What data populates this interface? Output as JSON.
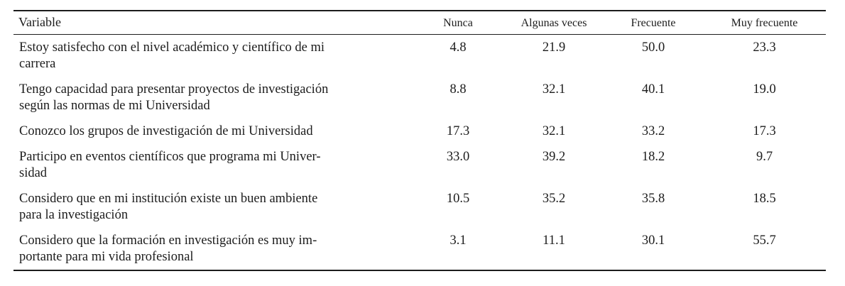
{
  "document": {
    "colors": {
      "background": "#ffffff",
      "text": "#1c1c1c",
      "rule": "#1c1c1c"
    },
    "header": {
      "variable": "Variable",
      "columns": [
        "Nunca",
        "Algunas veces",
        "Frecuente",
        "Muy frecuente"
      ]
    },
    "rows": [
      {
        "lines": [
          "Estoy satisfecho con el nivel académico y científico de mi",
          "carrera"
        ],
        "values": [
          "4.8",
          "21.9",
          "50.0",
          "23.3"
        ]
      },
      {
        "lines": [
          "Tengo capacidad para presentar proyectos de investigación",
          "según las normas de mi Universidad"
        ],
        "values": [
          "8.8",
          "32.1",
          "40.1",
          "19.0"
        ]
      },
      {
        "lines": [
          "Conozco los grupos de investigación de mi Universidad"
        ],
        "values": [
          "17.3",
          "32.1",
          "33.2",
          "17.3"
        ]
      },
      {
        "lines": [
          "Participo en eventos científicos que programa mi Univer-",
          "sidad"
        ],
        "values": [
          "33.0",
          "39.2",
          "18.2",
          "9.7"
        ]
      },
      {
        "lines": [
          "Considero que en mi institución existe un buen ambiente",
          "para la investigación"
        ],
        "values": [
          "10.5",
          "35.2",
          "35.8",
          "18.5"
        ]
      },
      {
        "lines": [
          "Considero que la formación en investigación es muy im-",
          "portante para mi vida profesional"
        ],
        "values": [
          "3.1",
          "11.1",
          "30.1",
          "55.7"
        ]
      }
    ]
  }
}
